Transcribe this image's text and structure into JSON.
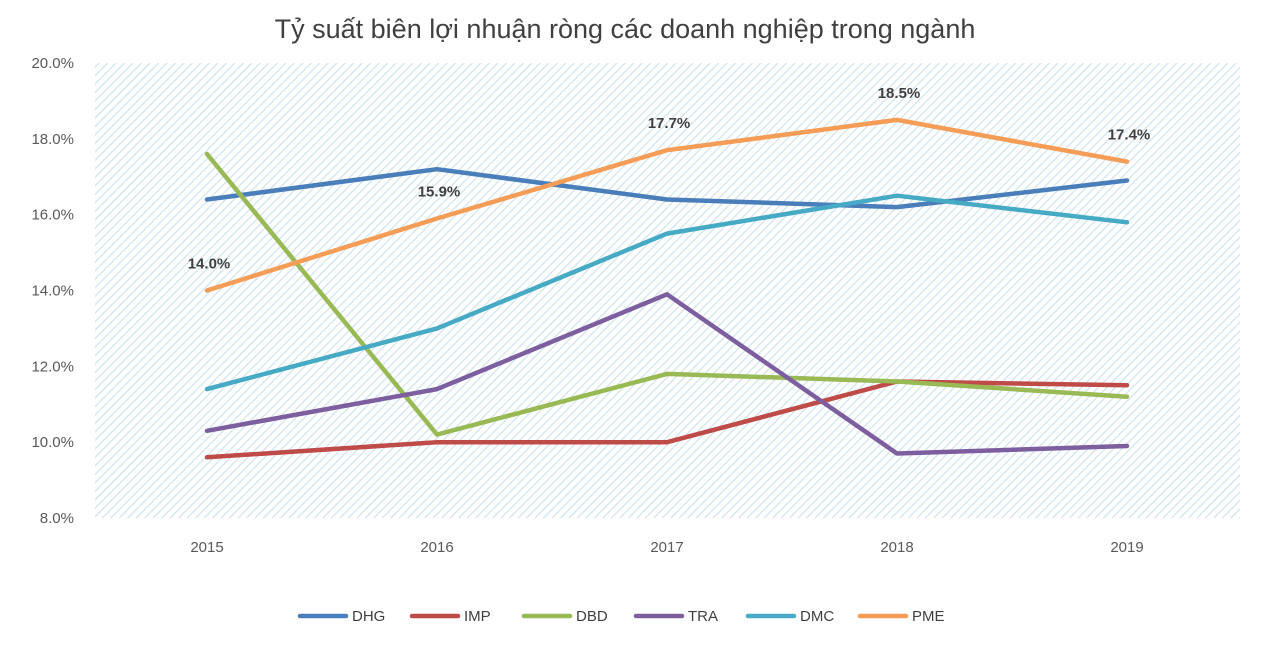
{
  "chart_data": {
    "type": "line",
    "title": "Tỷ suất biên lợi nhuận ròng các doanh nghiệp trong ngành",
    "xlabel": "",
    "ylabel": "",
    "x": [
      "2015",
      "2016",
      "2017",
      "2018",
      "2019"
    ],
    "ylim": [
      8.0,
      20.0
    ],
    "y_ticks": [
      "8.0%",
      "10.0%",
      "12.0%",
      "14.0%",
      "16.0%",
      "18.0%",
      "20.0%"
    ],
    "plot_background": "diagonal hatch, light blue",
    "grid": false,
    "legend_position": "bottom",
    "series": [
      {
        "name": "DHG",
        "color": "#4a7ebb",
        "values": [
          16.4,
          17.2,
          16.4,
          16.2,
          16.9
        ]
      },
      {
        "name": "IMP",
        "color": "#be4b48",
        "values": [
          9.6,
          10.0,
          10.0,
          11.6,
          11.5
        ]
      },
      {
        "name": "DBD",
        "color": "#98b954",
        "values": [
          17.6,
          10.2,
          11.8,
          11.6,
          11.2
        ]
      },
      {
        "name": "TRA",
        "color": "#7d5fa0",
        "values": [
          10.3,
          11.4,
          13.9,
          9.7,
          9.9
        ]
      },
      {
        "name": "DMC",
        "color": "#46aac5",
        "values": [
          11.4,
          13.0,
          15.5,
          16.5,
          15.8
        ]
      },
      {
        "name": "PME",
        "color": "#f59d56",
        "values": [
          14.0,
          15.9,
          17.7,
          18.5,
          17.4
        ],
        "labels": [
          "14.0%",
          "15.9%",
          "17.7%",
          "18.5%",
          "17.4%"
        ]
      }
    ]
  }
}
